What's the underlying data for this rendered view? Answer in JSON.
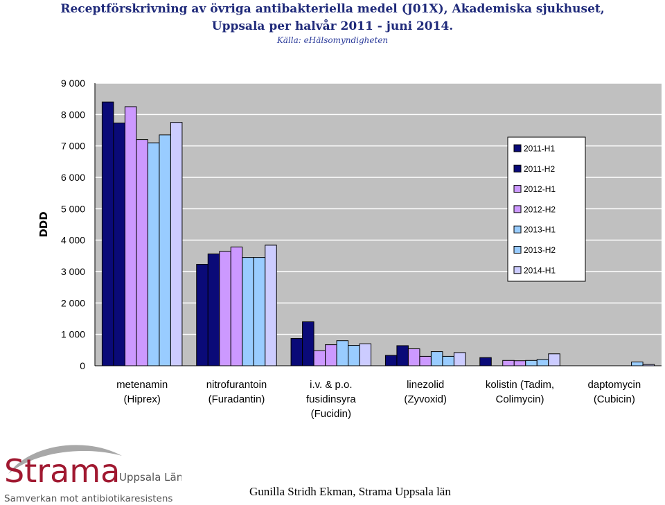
{
  "chart_data": {
    "type": "bar",
    "title": "Receptförskrivning av övriga antibakteriella medel (J01X), Akademiska sjukhuset,",
    "subtitle": "Uppsala per halvår 2011 - juni 2014.",
    "source": "Källa: eHälsomyndigheten",
    "ylabel": "DDD",
    "xlabel": "",
    "ylim": [
      0,
      9000
    ],
    "yticks": [
      "0",
      "1 000",
      "2 000",
      "3 000",
      "4 000",
      "5 000",
      "6 000",
      "7 000",
      "8 000",
      "9 000"
    ],
    "ytick_values": [
      0,
      1000,
      2000,
      3000,
      4000,
      5000,
      6000,
      7000,
      8000,
      9000
    ],
    "grid": true,
    "legend_position": "right",
    "categories": [
      [
        "metenamin",
        "(Hiprex)"
      ],
      [
        "nitrofurantoin",
        "(Furadantin)"
      ],
      [
        "i.v. & p.o.",
        "fusidinsyra",
        "(Fucidin)"
      ],
      [
        "linezolid",
        "(Zyvoxid)"
      ],
      [
        "kolistin (Tadim,",
        "Colimycin)"
      ],
      [
        "daptomycin",
        "(Cubicin)"
      ]
    ],
    "series": [
      {
        "name": "2011-H1",
        "color": "#0a0a78",
        "values": [
          8400,
          3230,
          870,
          330,
          260,
          0
        ]
      },
      {
        "name": "2011-H2",
        "color": "#0a0a78",
        "values": [
          7730,
          3560,
          1400,
          640,
          0,
          0
        ]
      },
      {
        "name": "2012-H1",
        "color": "#cc99ff",
        "values": [
          8250,
          3640,
          480,
          540,
          170,
          0
        ]
      },
      {
        "name": "2012-H2",
        "color": "#cc99ff",
        "values": [
          7200,
          3780,
          670,
          300,
          160,
          0
        ]
      },
      {
        "name": "2013-H1",
        "color": "#99ccff",
        "values": [
          7100,
          3450,
          800,
          450,
          170,
          0
        ]
      },
      {
        "name": "2013-H2",
        "color": "#99ccff",
        "values": [
          7350,
          3450,
          650,
          300,
          200,
          120
        ]
      },
      {
        "name": "2014-H1",
        "color": "#ccccff",
        "values": [
          7750,
          3840,
          700,
          420,
          380,
          40
        ]
      }
    ]
  },
  "logo": {
    "brand": "Strama",
    "region": "Uppsala Län",
    "tagline": "Samverkan mot antibiotikaresistens"
  },
  "footer": {
    "author": "Gunilla Stridh Ekman, Strama Uppsala län"
  }
}
